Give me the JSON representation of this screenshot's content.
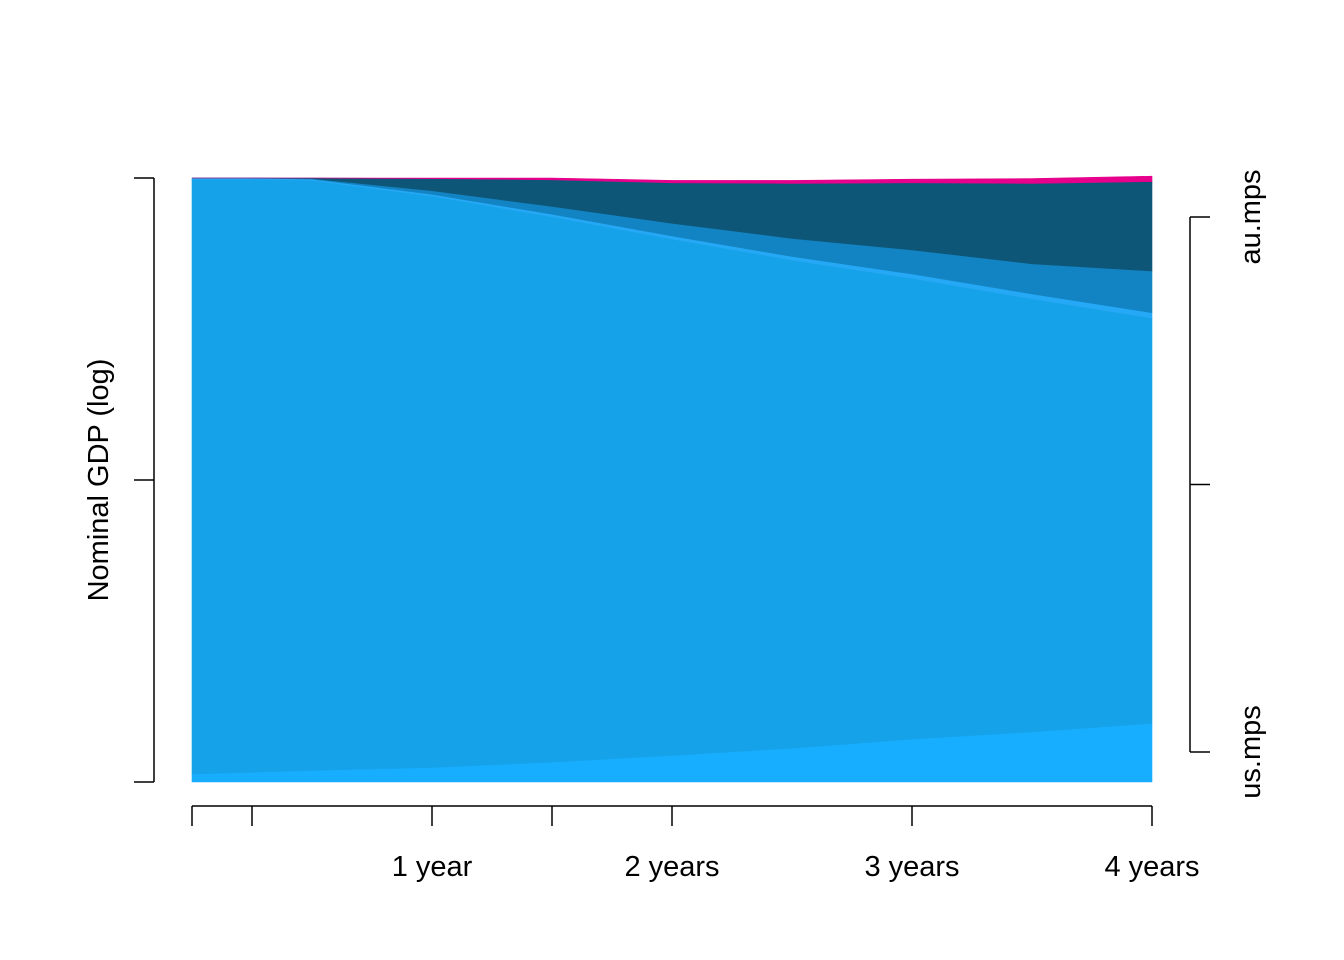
{
  "chart_data": {
    "type": "area",
    "title": "",
    "xlabel": "",
    "ylabel": "Nominal GDP (log)",
    "yscale": "log",
    "grid": false,
    "legend": "none",
    "x": [
      0,
      0.25,
      0.5,
      1,
      1.5,
      2,
      2.5,
      3,
      3.5,
      4
    ],
    "x_ticks": [
      0,
      0.25,
      1,
      1.5,
      2,
      3,
      4
    ],
    "x_tick_labels": [
      {
        "x": 1,
        "label": "1 year"
      },
      {
        "x": 2,
        "label": "2 years"
      },
      {
        "x": 3,
        "label": "3 years"
      },
      {
        "x": 4,
        "label": "4 years"
      }
    ],
    "y_ticks_count": 3,
    "series": [
      {
        "color": "#18AEFF",
        "values": [
          0.013,
          0.016,
          0.019,
          0.024,
          0.033,
          0.044,
          0.056,
          0.071,
          0.083,
          0.097
        ]
      },
      {
        "color": "#16A2E8",
        "values": [
          0.985,
          0.982,
          0.977,
          0.946,
          0.903,
          0.855,
          0.808,
          0.763,
          0.717,
          0.671
        ]
      },
      {
        "color": "#25A8F5",
        "values": [
          0.002,
          0.002,
          0.002,
          0.003,
          0.004,
          0.005,
          0.006,
          0.007,
          0.008,
          0.009
        ]
      },
      {
        "color": "#1384C3",
        "values": [
          0.0,
          0.0,
          0.001,
          0.006,
          0.013,
          0.021,
          0.03,
          0.04,
          0.05,
          0.069
        ]
      },
      {
        "color": "#0E5678",
        "values": [
          0.0,
          0.0,
          0.001,
          0.02,
          0.044,
          0.067,
          0.091,
          0.111,
          0.133,
          0.148
        ]
      },
      {
        "color": "#E6008C",
        "values": [
          0.0,
          0.0,
          0.0,
          0.001,
          0.003,
          0.004,
          0.005,
          0.006,
          0.008,
          0.009
        ]
      }
    ],
    "right_axis": {
      "labels": [
        {
          "label": "us.mps",
          "at": 0.0
        },
        {
          "label": "au.mps",
          "at": 1.0
        }
      ],
      "ticks": [
        0.0,
        0.5,
        1.0
      ]
    }
  }
}
